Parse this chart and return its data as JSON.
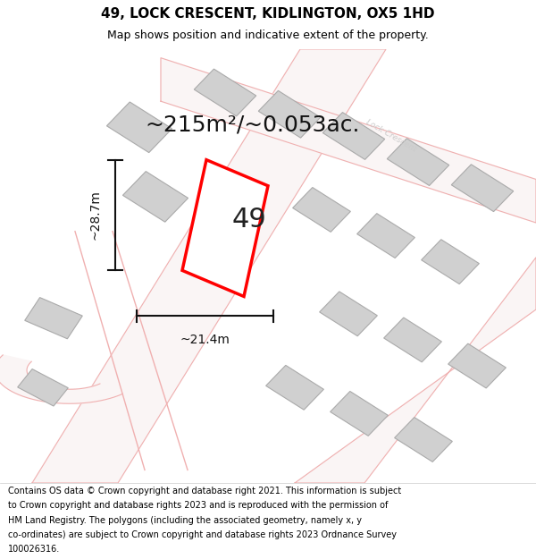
{
  "title": "49, LOCK CRESCENT, KIDLINGTON, OX5 1HD",
  "subtitle": "Map shows position and indicative extent of the property.",
  "area_text": "~215m²/~0.053ac.",
  "dim_width": "~21.4m",
  "dim_height": "~28.7m",
  "plot_number": "49",
  "footer_lines": [
    "Contains OS data © Crown copyright and database right 2021. This information is subject",
    "to Crown copyright and database rights 2023 and is reproduced with the permission of",
    "HM Land Registry. The polygons (including the associated geometry, namely x, y",
    "co-ordinates) are subject to Crown copyright and database rights 2023 Ordnance Survey",
    "100026316."
  ],
  "map_bg": "#f5f5f5",
  "road_color_light": "#f0b0b0",
  "building_color": "#d0d0d0",
  "building_edge": "#aaaaaa",
  "plot_color": "#ff0000",
  "arrow_color": "#111111",
  "title_fontsize": 11,
  "subtitle_fontsize": 9,
  "area_fontsize": 18,
  "dim_fontsize": 10,
  "plot_num_fontsize": 22,
  "footer_fontsize": 7
}
